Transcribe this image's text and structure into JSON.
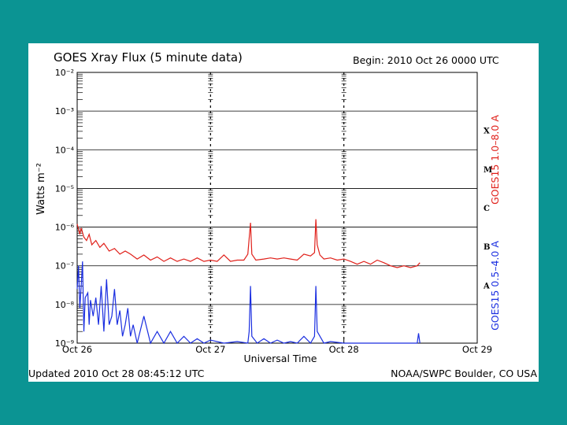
{
  "chart_data": {
    "type": "line",
    "title": "GOES Xray Flux (5 minute data)",
    "begin": "Begin:  2010 Oct 26 0000 UTC",
    "ylabel": "Watts m⁻²",
    "xlabel": "Universal Time",
    "yscale": "log",
    "ylim": [
      1e-09,
      0.01
    ],
    "y_ticks": [
      {
        "value": 0.01,
        "label": "10⁻²"
      },
      {
        "value": 0.001,
        "label": "10⁻³"
      },
      {
        "value": 0.0001,
        "label": "10⁻⁴"
      },
      {
        "value": 1e-05,
        "label": "10⁻⁵"
      },
      {
        "value": 1e-06,
        "label": "10⁻⁶"
      },
      {
        "value": 1e-07,
        "label": "10⁻⁷"
      },
      {
        "value": 1e-08,
        "label": "10⁻⁸"
      },
      {
        "value": 1e-09,
        "label": "10⁻⁹"
      }
    ],
    "x_ticks": [
      "Oct 26",
      "Oct 27",
      "Oct 28",
      "Oct 29"
    ],
    "xlim_days": [
      0,
      3
    ],
    "class_labels": [
      {
        "label": "X",
        "value": 0.000316
      },
      {
        "label": "M",
        "value": 3.16e-05
      },
      {
        "label": "C",
        "value": 3.16e-06
      },
      {
        "label": "B",
        "value": 3.16e-07
      },
      {
        "label": "A",
        "value": 3.16e-08
      }
    ],
    "series": [
      {
        "name": "GOES15 1.0–8.0 A",
        "color": "#e0201a",
        "points": [
          [
            0.0,
            1.2e-06
          ],
          [
            0.02,
            6.5e-07
          ],
          [
            0.03,
            9.5e-07
          ],
          [
            0.05,
            5.5e-07
          ],
          [
            0.07,
            4.5e-07
          ],
          [
            0.09,
            6.5e-07
          ],
          [
            0.11,
            3.5e-07
          ],
          [
            0.14,
            4.5e-07
          ],
          [
            0.17,
            3e-07
          ],
          [
            0.2,
            3.8e-07
          ],
          [
            0.24,
            2.4e-07
          ],
          [
            0.28,
            2.8e-07
          ],
          [
            0.32,
            2e-07
          ],
          [
            0.36,
            2.4e-07
          ],
          [
            0.4,
            2e-07
          ],
          [
            0.45,
            1.5e-07
          ],
          [
            0.5,
            1.9e-07
          ],
          [
            0.55,
            1.4e-07
          ],
          [
            0.6,
            1.7e-07
          ],
          [
            0.65,
            1.3e-07
          ],
          [
            0.7,
            1.6e-07
          ],
          [
            0.75,
            1.3e-07
          ],
          [
            0.8,
            1.5e-07
          ],
          [
            0.85,
            1.3e-07
          ],
          [
            0.9,
            1.6e-07
          ],
          [
            0.95,
            1.3e-07
          ],
          [
            1.0,
            1.4e-07
          ],
          [
            1.05,
            1.3e-07
          ],
          [
            1.1,
            1.9e-07
          ],
          [
            1.15,
            1.3e-07
          ],
          [
            1.2,
            1.4e-07
          ],
          [
            1.25,
            1.4e-07
          ],
          [
            1.28,
            2e-07
          ],
          [
            1.3,
            1.3e-06
          ],
          [
            1.31,
            2e-07
          ],
          [
            1.34,
            1.4e-07
          ],
          [
            1.4,
            1.5e-07
          ],
          [
            1.45,
            1.6e-07
          ],
          [
            1.5,
            1.5e-07
          ],
          [
            1.55,
            1.6e-07
          ],
          [
            1.6,
            1.5e-07
          ],
          [
            1.65,
            1.4e-07
          ],
          [
            1.7,
            2e-07
          ],
          [
            1.75,
            1.8e-07
          ],
          [
            1.78,
            2.2e-07
          ],
          [
            1.79,
            1.6e-06
          ],
          [
            1.8,
            3.5e-07
          ],
          [
            1.82,
            1.9e-07
          ],
          [
            1.85,
            1.5e-07
          ],
          [
            1.9,
            1.6e-07
          ],
          [
            1.95,
            1.4e-07
          ],
          [
            2.0,
            1.5e-07
          ],
          [
            2.05,
            1.3e-07
          ],
          [
            2.1,
            1.1e-07
          ],
          [
            2.15,
            1.3e-07
          ],
          [
            2.2,
            1.1e-07
          ],
          [
            2.25,
            1.4e-07
          ],
          [
            2.3,
            1.2e-07
          ],
          [
            2.35,
            1e-07
          ],
          [
            2.4,
            9e-08
          ],
          [
            2.45,
            1e-07
          ],
          [
            2.5,
            9e-08
          ],
          [
            2.55,
            1e-07
          ],
          [
            2.57,
            1.2e-07
          ]
        ]
      },
      {
        "name": "GOES15 0.5–4.0 A",
        "color": "#1a2ee0",
        "points": [
          [
            0.0,
            2.5e-08
          ],
          [
            0.01,
            1e-07
          ],
          [
            0.02,
            8e-09
          ],
          [
            0.03,
            3e-08
          ],
          [
            0.04,
            1.3e-07
          ],
          [
            0.05,
            2e-09
          ],
          [
            0.06,
            1.5e-08
          ],
          [
            0.08,
            2e-08
          ],
          [
            0.09,
            3e-09
          ],
          [
            0.1,
            1.3e-08
          ],
          [
            0.12,
            5e-09
          ],
          [
            0.14,
            1.5e-08
          ],
          [
            0.16,
            3e-09
          ],
          [
            0.18,
            3e-08
          ],
          [
            0.2,
            2e-09
          ],
          [
            0.22,
            4.5e-08
          ],
          [
            0.24,
            3e-09
          ],
          [
            0.26,
            5e-09
          ],
          [
            0.28,
            2.5e-08
          ],
          [
            0.3,
            3e-09
          ],
          [
            0.32,
            7e-09
          ],
          [
            0.34,
            1.5e-09
          ],
          [
            0.36,
            3e-09
          ],
          [
            0.38,
            8e-09
          ],
          [
            0.4,
            1.5e-09
          ],
          [
            0.42,
            3e-09
          ],
          [
            0.45,
            1e-09
          ],
          [
            0.5,
            5e-09
          ],
          [
            0.55,
            1e-09
          ],
          [
            0.6,
            2e-09
          ],
          [
            0.65,
            1e-09
          ],
          [
            0.7,
            2e-09
          ],
          [
            0.75,
            1e-09
          ],
          [
            0.8,
            1.5e-09
          ],
          [
            0.85,
            1e-09
          ],
          [
            0.9,
            1.3e-09
          ],
          [
            0.95,
            1e-09
          ],
          [
            1.0,
            1.2e-09
          ],
          [
            1.1,
            1e-09
          ],
          [
            1.2,
            1.1e-09
          ],
          [
            1.28,
            1e-09
          ],
          [
            1.29,
            2e-09
          ],
          [
            1.3,
            3e-08
          ],
          [
            1.31,
            1.5e-09
          ],
          [
            1.35,
            1e-09
          ],
          [
            1.4,
            1.3e-09
          ],
          [
            1.45,
            1e-09
          ],
          [
            1.5,
            1.2e-09
          ],
          [
            1.55,
            1e-09
          ],
          [
            1.6,
            1.1e-09
          ],
          [
            1.65,
            1e-09
          ],
          [
            1.7,
            1.5e-09
          ],
          [
            1.75,
            1e-09
          ],
          [
            1.78,
            1.5e-09
          ],
          [
            1.79,
            3e-08
          ],
          [
            1.8,
            2e-09
          ],
          [
            1.85,
            1e-09
          ],
          [
            1.9,
            1.1e-09
          ],
          [
            2.0,
            1e-09
          ],
          [
            2.1,
            1e-09
          ],
          [
            2.2,
            1e-09
          ],
          [
            2.3,
            1e-09
          ],
          [
            2.4,
            1e-09
          ],
          [
            2.5,
            1e-09
          ],
          [
            2.55,
            1e-09
          ],
          [
            2.56,
            1.8e-09
          ],
          [
            2.57,
            1e-09
          ]
        ]
      }
    ]
  },
  "footer": {
    "updated": "Updated 2010 Oct 28 08:45:12 UTC",
    "source": "NOAA/SWPC Boulder, CO USA"
  }
}
